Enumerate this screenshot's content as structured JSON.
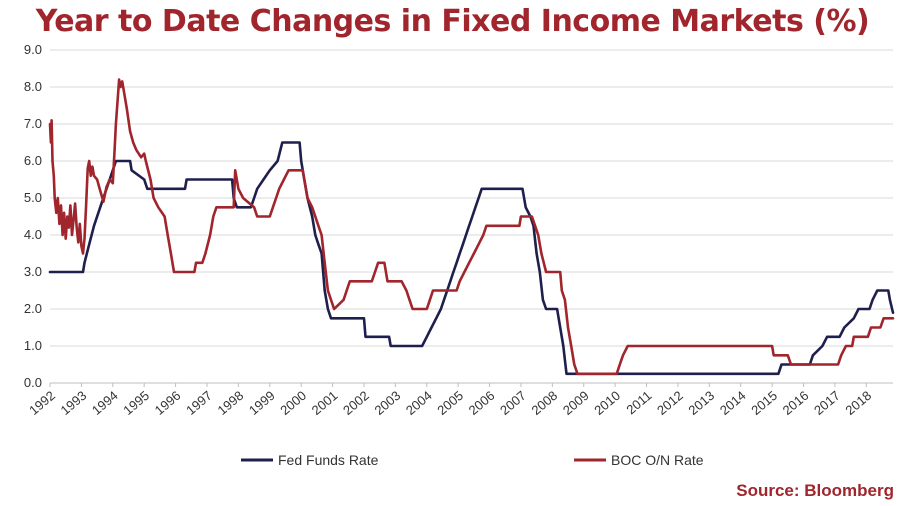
{
  "title": "Year to Date Changes in Fixed Income Markets (%)",
  "source": "Source: Bloomberg",
  "colors": {
    "fed": "#1f1f4d",
    "boc": "#a0252c",
    "title": "#a0252c",
    "grid": "#d9d9d9"
  },
  "chart_data": {
    "type": "line",
    "title": "Year to Date Changes in Fixed Income Markets (%)",
    "xlabel": "",
    "ylabel": "",
    "xlim": [
      1992,
      2018.85
    ],
    "ylim": [
      0,
      9
    ],
    "y_ticks": [
      "0.0",
      "1.0",
      "2.0",
      "3.0",
      "4.0",
      "5.0",
      "6.0",
      "7.0",
      "8.0",
      "9.0"
    ],
    "x_ticks": [
      "1992",
      "1993",
      "1994",
      "1995",
      "1996",
      "1997",
      "1998",
      "1999",
      "2000",
      "2001",
      "2002",
      "2003",
      "2004",
      "2005",
      "2006",
      "2007",
      "2008",
      "2009",
      "2010",
      "2011",
      "2012",
      "2013",
      "2014",
      "2015",
      "2016",
      "2017",
      "2018"
    ],
    "grid": true,
    "legend": "bottom",
    "series": [
      {
        "name": "Fed Funds Rate",
        "color": "#1f1f4d",
        "points": [
          [
            1992.0,
            3.0
          ],
          [
            1993.05,
            3.0
          ],
          [
            1993.1,
            3.25
          ],
          [
            1993.25,
            3.75
          ],
          [
            1993.4,
            4.25
          ],
          [
            1993.6,
            4.75
          ],
          [
            1993.9,
            5.5
          ],
          [
            1994.1,
            6.0
          ],
          [
            1994.55,
            6.0
          ],
          [
            1994.6,
            5.75
          ],
          [
            1995.0,
            5.5
          ],
          [
            1995.1,
            5.25
          ],
          [
            1996.3,
            5.25
          ],
          [
            1996.35,
            5.5
          ],
          [
            1997.8,
            5.5
          ],
          [
            1997.85,
            5.0
          ],
          [
            1997.95,
            4.75
          ],
          [
            1998.4,
            4.75
          ],
          [
            1998.5,
            5.0
          ],
          [
            1998.6,
            5.25
          ],
          [
            1998.8,
            5.5
          ],
          [
            1999.0,
            5.75
          ],
          [
            1999.25,
            6.0
          ],
          [
            1999.4,
            6.5
          ],
          [
            1999.95,
            6.5
          ],
          [
            2000.0,
            6.0
          ],
          [
            2000.1,
            5.5
          ],
          [
            2000.2,
            5.0
          ],
          [
            2000.35,
            4.5
          ],
          [
            2000.45,
            4.0
          ],
          [
            2000.55,
            3.75
          ],
          [
            2000.65,
            3.5
          ],
          [
            2000.75,
            2.5
          ],
          [
            2000.85,
            2.0
          ],
          [
            2000.95,
            1.75
          ],
          [
            2002.0,
            1.75
          ],
          [
            2002.05,
            1.25
          ],
          [
            2002.8,
            1.25
          ],
          [
            2002.85,
            1.0
          ],
          [
            2003.85,
            1.0
          ],
          [
            2004.0,
            1.25
          ],
          [
            2004.15,
            1.5
          ],
          [
            2004.3,
            1.75
          ],
          [
            2004.45,
            2.0
          ],
          [
            2004.55,
            2.25
          ],
          [
            2004.65,
            2.5
          ],
          [
            2004.75,
            2.75
          ],
          [
            2004.85,
            3.0
          ],
          [
            2004.95,
            3.25
          ],
          [
            2005.05,
            3.5
          ],
          [
            2005.15,
            3.75
          ],
          [
            2005.25,
            4.0
          ],
          [
            2005.35,
            4.25
          ],
          [
            2005.45,
            4.5
          ],
          [
            2005.55,
            4.75
          ],
          [
            2005.65,
            5.0
          ],
          [
            2005.75,
            5.25
          ],
          [
            2007.05,
            5.25
          ],
          [
            2007.15,
            4.75
          ],
          [
            2007.3,
            4.5
          ],
          [
            2007.4,
            4.25
          ],
          [
            2007.5,
            3.5
          ],
          [
            2007.6,
            3.0
          ],
          [
            2007.7,
            2.25
          ],
          [
            2007.8,
            2.0
          ],
          [
            2008.15,
            2.0
          ],
          [
            2008.25,
            1.5
          ],
          [
            2008.35,
            1.0
          ],
          [
            2008.45,
            0.25
          ],
          [
            2015.2,
            0.25
          ],
          [
            2015.3,
            0.5
          ],
          [
            2016.2,
            0.5
          ],
          [
            2016.3,
            0.75
          ],
          [
            2016.6,
            1.0
          ],
          [
            2016.75,
            1.25
          ],
          [
            2017.15,
            1.25
          ],
          [
            2017.3,
            1.5
          ],
          [
            2017.6,
            1.75
          ],
          [
            2017.75,
            2.0
          ],
          [
            2018.1,
            2.0
          ],
          [
            2018.2,
            2.25
          ],
          [
            2018.35,
            2.5
          ],
          [
            2018.7,
            2.5
          ],
          [
            2018.75,
            2.25
          ],
          [
            2018.82,
            2.0
          ],
          [
            2018.85,
            1.9
          ]
        ]
      },
      {
        "name": "BOC O/N Rate",
        "color": "#a0252c",
        "points": [
          [
            1992.0,
            7.0
          ],
          [
            1992.03,
            6.5
          ],
          [
            1992.05,
            7.1
          ],
          [
            1992.08,
            6.0
          ],
          [
            1992.12,
            5.6
          ],
          [
            1992.15,
            5.0
          ],
          [
            1992.2,
            4.6
          ],
          [
            1992.25,
            5.0
          ],
          [
            1992.3,
            4.3
          ],
          [
            1992.35,
            4.8
          ],
          [
            1992.4,
            4.0
          ],
          [
            1992.45,
            4.6
          ],
          [
            1992.5,
            3.9
          ],
          [
            1992.55,
            4.5
          ],
          [
            1992.6,
            4.2
          ],
          [
            1992.65,
            4.8
          ],
          [
            1992.7,
            4.0
          ],
          [
            1992.75,
            4.4
          ],
          [
            1992.8,
            4.85
          ],
          [
            1992.85,
            4.2
          ],
          [
            1992.9,
            3.8
          ],
          [
            1992.95,
            4.3
          ],
          [
            1993.0,
            3.7
          ],
          [
            1993.05,
            3.5
          ],
          [
            1993.1,
            3.9
          ],
          [
            1993.15,
            4.8
          ],
          [
            1993.2,
            5.8
          ],
          [
            1993.25,
            6.0
          ],
          [
            1993.3,
            5.6
          ],
          [
            1993.35,
            5.85
          ],
          [
            1993.4,
            5.6
          ],
          [
            1993.5,
            5.5
          ],
          [
            1993.6,
            5.2
          ],
          [
            1993.7,
            4.9
          ],
          [
            1993.8,
            5.3
          ],
          [
            1993.9,
            5.5
          ],
          [
            1994.0,
            5.4
          ],
          [
            1994.05,
            6.2
          ],
          [
            1994.1,
            7.0
          ],
          [
            1994.15,
            7.6
          ],
          [
            1994.2,
            8.2
          ],
          [
            1994.25,
            8.0
          ],
          [
            1994.3,
            8.15
          ],
          [
            1994.35,
            7.9
          ],
          [
            1994.45,
            7.4
          ],
          [
            1994.55,
            6.8
          ],
          [
            1994.65,
            6.5
          ],
          [
            1994.75,
            6.3
          ],
          [
            1994.9,
            6.1
          ],
          [
            1995.0,
            6.2
          ],
          [
            1995.05,
            6.0
          ],
          [
            1995.2,
            5.5
          ],
          [
            1995.3,
            5.0
          ],
          [
            1995.45,
            4.75
          ],
          [
            1995.65,
            4.5
          ],
          [
            1995.75,
            4.0
          ],
          [
            1995.85,
            3.5
          ],
          [
            1995.95,
            3.0
          ],
          [
            1996.6,
            3.0
          ],
          [
            1996.65,
            3.25
          ],
          [
            1996.85,
            3.25
          ],
          [
            1996.95,
            3.5
          ],
          [
            1997.1,
            4.0
          ],
          [
            1997.2,
            4.5
          ],
          [
            1997.3,
            4.75
          ],
          [
            1997.85,
            4.75
          ],
          [
            1997.9,
            5.75
          ],
          [
            1998.0,
            5.25
          ],
          [
            1998.15,
            5.0
          ],
          [
            1998.5,
            4.75
          ],
          [
            1998.6,
            4.5
          ],
          [
            1999.0,
            4.5
          ],
          [
            1999.1,
            4.75
          ],
          [
            1999.2,
            5.0
          ],
          [
            1999.3,
            5.25
          ],
          [
            1999.45,
            5.5
          ],
          [
            1999.6,
            5.75
          ],
          [
            2000.05,
            5.75
          ],
          [
            2000.1,
            5.5
          ],
          [
            2000.2,
            5.0
          ],
          [
            2000.35,
            4.75
          ],
          [
            2000.45,
            4.5
          ],
          [
            2000.55,
            4.25
          ],
          [
            2000.65,
            4.0
          ],
          [
            2000.75,
            3.25
          ],
          [
            2000.85,
            2.5
          ],
          [
            2000.95,
            2.25
          ],
          [
            2001.05,
            2.0
          ],
          [
            2001.35,
            2.25
          ],
          [
            2001.45,
            2.5
          ],
          [
            2001.55,
            2.75
          ],
          [
            2002.25,
            2.75
          ],
          [
            2002.35,
            3.0
          ],
          [
            2002.45,
            3.25
          ],
          [
            2002.65,
            3.25
          ],
          [
            2002.75,
            2.75
          ],
          [
            2003.2,
            2.75
          ],
          [
            2003.35,
            2.5
          ],
          [
            2003.45,
            2.25
          ],
          [
            2003.55,
            2.0
          ],
          [
            2004.0,
            2.0
          ],
          [
            2004.1,
            2.25
          ],
          [
            2004.2,
            2.5
          ],
          [
            2004.95,
            2.5
          ],
          [
            2005.05,
            2.75
          ],
          [
            2005.2,
            3.0
          ],
          [
            2005.35,
            3.25
          ],
          [
            2005.5,
            3.5
          ],
          [
            2005.65,
            3.75
          ],
          [
            2005.8,
            4.0
          ],
          [
            2005.9,
            4.25
          ],
          [
            2006.95,
            4.25
          ],
          [
            2007.0,
            4.5
          ],
          [
            2007.35,
            4.5
          ],
          [
            2007.45,
            4.25
          ],
          [
            2007.55,
            4.0
          ],
          [
            2007.65,
            3.5
          ],
          [
            2007.8,
            3.0
          ],
          [
            2008.25,
            3.0
          ],
          [
            2008.3,
            2.5
          ],
          [
            2008.4,
            2.25
          ],
          [
            2008.5,
            1.5
          ],
          [
            2008.6,
            1.0
          ],
          [
            2008.7,
            0.5
          ],
          [
            2008.8,
            0.25
          ],
          [
            2010.05,
            0.25
          ],
          [
            2010.15,
            0.5
          ],
          [
            2010.25,
            0.75
          ],
          [
            2010.4,
            1.0
          ],
          [
            2015.0,
            1.0
          ],
          [
            2015.05,
            0.75
          ],
          [
            2015.5,
            0.75
          ],
          [
            2015.6,
            0.5
          ],
          [
            2017.1,
            0.5
          ],
          [
            2017.2,
            0.75
          ],
          [
            2017.35,
            1.0
          ],
          [
            2017.55,
            1.0
          ],
          [
            2017.6,
            1.25
          ],
          [
            2018.05,
            1.25
          ],
          [
            2018.15,
            1.5
          ],
          [
            2018.45,
            1.5
          ],
          [
            2018.55,
            1.75
          ],
          [
            2018.85,
            1.75
          ]
        ]
      }
    ]
  }
}
